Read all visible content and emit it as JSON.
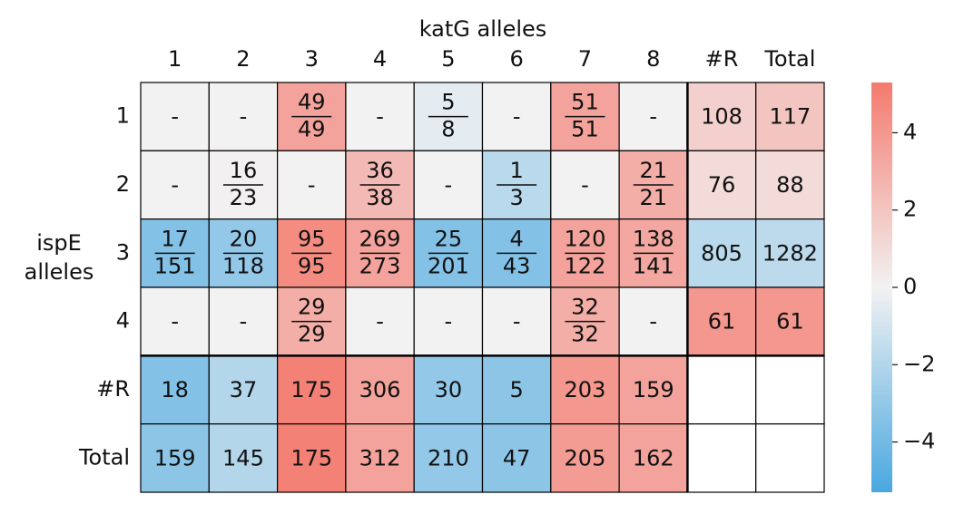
{
  "chart_data": {
    "type": "heatmap",
    "title": "katG alleles",
    "ylabel": [
      "ispE",
      "alleles"
    ],
    "x_categories": [
      "1",
      "2",
      "3",
      "4",
      "5",
      "6",
      "7",
      "8",
      "#R",
      "Total"
    ],
    "y_categories": [
      "1",
      "2",
      "3",
      "4",
      "#R",
      "Total"
    ],
    "labels": [
      [
        "-",
        "-",
        {
          "num": "49",
          "den": "49"
        },
        "-",
        {
          "num": "5",
          "den": "8"
        },
        "-",
        {
          "num": "51",
          "den": "51"
        },
        "-",
        "108",
        "117"
      ],
      [
        "-",
        {
          "num": "16",
          "den": "23"
        },
        "-",
        {
          "num": "36",
          "den": "38"
        },
        "-",
        {
          "num": "1",
          "den": "3"
        },
        "-",
        {
          "num": "21",
          "den": "21"
        },
        "76",
        "88"
      ],
      [
        {
          "num": "17",
          "den": "151"
        },
        {
          "num": "20",
          "den": "118"
        },
        {
          "num": "95",
          "den": "95"
        },
        {
          "num": "269",
          "den": "273"
        },
        {
          "num": "25",
          "den": "201"
        },
        {
          "num": "4",
          "den": "43"
        },
        {
          "num": "120",
          "den": "122"
        },
        {
          "num": "138",
          "den": "141"
        },
        "805",
        "1282"
      ],
      [
        "-",
        "-",
        {
          "num": "29",
          "den": "29"
        },
        "-",
        "-",
        "-",
        {
          "num": "32",
          "den": "32"
        },
        "-",
        "61",
        "61"
      ],
      [
        "18",
        "37",
        "175",
        "306",
        "30",
        "5",
        "203",
        "159",
        null,
        null
      ],
      [
        "159",
        "145",
        "175",
        "312",
        "210",
        "47",
        "205",
        "162",
        null,
        null
      ]
    ],
    "values": [
      [
        null,
        null,
        3.5,
        null,
        -0.4,
        null,
        3.5,
        null,
        1.5,
        2
      ],
      [
        null,
        0.1,
        null,
        2.5,
        null,
        -1.8,
        null,
        3,
        1,
        1
      ],
      [
        -3.5,
        -3,
        4.5,
        3.5,
        -3.5,
        -3.5,
        3.5,
        3.3,
        -1.8,
        -1.7
      ],
      [
        null,
        null,
        3,
        null,
        null,
        null,
        3,
        null,
        4,
        4
      ],
      [
        -3.5,
        -2,
        5,
        3.5,
        -3,
        -3.2,
        4,
        3.5,
        null,
        null
      ],
      [
        -3.2,
        -2,
        5,
        3.5,
        -3,
        -3.2,
        3.8,
        3.5,
        null,
        null
      ]
    ],
    "colormap": [
      "#4aa8e0",
      "#f2f2f2",
      "#f47a6e"
    ],
    "missing_color": "#f2f2f2",
    "clim": [
      -5.3,
      5.3
    ],
    "cticks": [
      {
        "value": -4,
        "label": "−4"
      },
      {
        "value": -2,
        "label": "−2"
      },
      0,
      2,
      4
    ]
  }
}
